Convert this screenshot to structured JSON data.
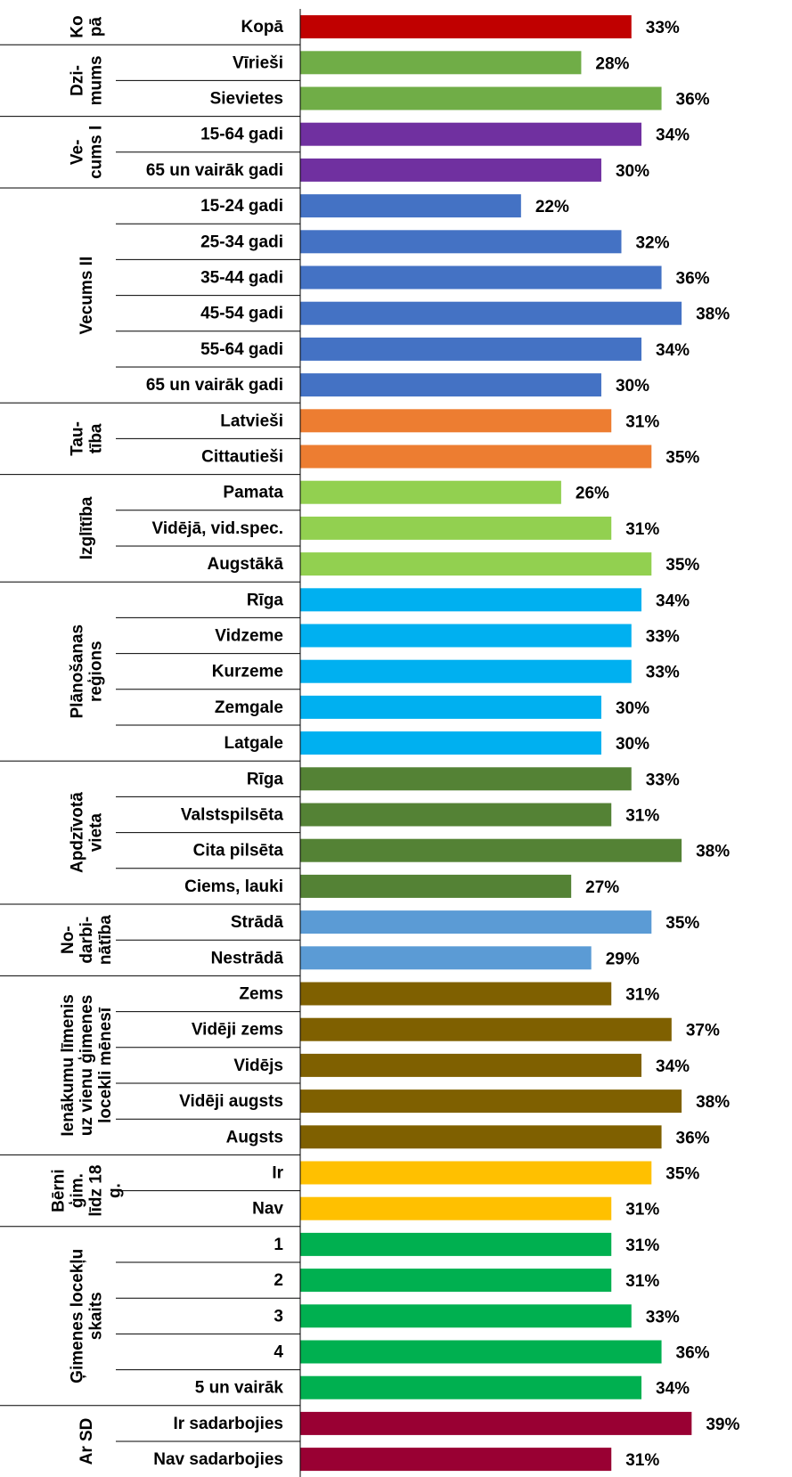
{
  "chart_data": {
    "type": "bar",
    "xlim": [
      0,
      49
    ],
    "groups": [
      {
        "name_lines": [
          "Ko",
          "pā"
        ],
        "color": "#c00000",
        "categories": [
          "Kopā"
        ],
        "values": [
          33
        ],
        "value_labels": [
          "33%"
        ]
      },
      {
        "name_lines": [
          "Dzi-",
          "mums"
        ],
        "color": "#70ad47",
        "categories": [
          "Vīrieši",
          "Sievietes"
        ],
        "values": [
          28,
          36
        ],
        "value_labels": [
          "28%",
          "36%"
        ]
      },
      {
        "name_lines": [
          "Ve-",
          "cums I"
        ],
        "color": "#7030a0",
        "categories": [
          "15-64 gadi",
          "65 un vairāk gadi"
        ],
        "values": [
          34,
          30
        ],
        "value_labels": [
          "34%",
          "30%"
        ]
      },
      {
        "name_lines": [
          "Vecums II"
        ],
        "color": "#4472c4",
        "categories": [
          "15-24 gadi",
          "25-34 gadi",
          "35-44 gadi",
          "45-54 gadi",
          "55-64 gadi",
          "65 un vairāk gadi"
        ],
        "values": [
          22,
          32,
          36,
          38,
          34,
          30
        ],
        "value_labels": [
          "22%",
          "32%",
          "36%",
          "38%",
          "34%",
          "30%"
        ]
      },
      {
        "name_lines": [
          "Tau-",
          "tība"
        ],
        "color": "#ed7d31",
        "categories": [
          "Latvieši",
          "Cittautieši"
        ],
        "values": [
          31,
          35
        ],
        "value_labels": [
          "31%",
          "35%"
        ]
      },
      {
        "name_lines": [
          "Izglītība"
        ],
        "color": "#92d050",
        "categories": [
          "Pamata",
          "Vidējā, vid.spec.",
          "Augstākā"
        ],
        "values": [
          26,
          31,
          35
        ],
        "value_labels": [
          "26%",
          "31%",
          "35%"
        ]
      },
      {
        "name_lines": [
          "Plānošanas",
          "reģions"
        ],
        "color": "#00b0f0",
        "categories": [
          "Rīga",
          "Vidzeme",
          "Kurzeme",
          "Zemgale",
          "Latgale"
        ],
        "values": [
          34,
          33,
          33,
          30,
          30
        ],
        "value_labels": [
          "34%",
          "33%",
          "33%",
          "30%",
          "30%"
        ]
      },
      {
        "name_lines": [
          "Apdzīvotā",
          "vieta"
        ],
        "color": "#548235",
        "categories": [
          "Rīga",
          "Valstspilsēta",
          "Cita pilsēta",
          "Ciems, lauki"
        ],
        "values": [
          33,
          31,
          38,
          27
        ],
        "value_labels": [
          "33%",
          "31%",
          "38%",
          "27%"
        ]
      },
      {
        "name_lines": [
          "No-",
          "darbi-",
          "nātība"
        ],
        "color": "#5b9bd5",
        "categories": [
          "Strādā",
          "Nestrādā"
        ],
        "values": [
          35,
          29
        ],
        "value_labels": [
          "35%",
          "29%"
        ]
      },
      {
        "name_lines": [
          "Ienākumu līmenis",
          "uz vienu ģimenes",
          "locekli mēnesī"
        ],
        "color": "#7f6000",
        "categories": [
          "Zems",
          "Vidēji zems",
          "Vidējs",
          "Vidēji augsts",
          "Augsts"
        ],
        "values": [
          31,
          37,
          34,
          38,
          36
        ],
        "value_labels": [
          "31%",
          "37%",
          "34%",
          "38%",
          "36%"
        ]
      },
      {
        "name_lines": [
          "Bērni",
          "ģim.",
          "līdz 18",
          "g."
        ],
        "color": "#ffc000",
        "categories": [
          "Ir",
          "Nav"
        ],
        "values": [
          35,
          31
        ],
        "value_labels": [
          "35%",
          "31%"
        ]
      },
      {
        "name_lines": [
          "Ģimenes locekļu",
          "skaits"
        ],
        "color": "#00b050",
        "categories": [
          "1",
          "2",
          "3",
          "4",
          "5 un vairāk"
        ],
        "values": [
          31,
          31,
          33,
          36,
          34
        ],
        "value_labels": [
          "31%",
          "31%",
          "33%",
          "36%",
          "34%"
        ]
      },
      {
        "name_lines": [
          "Ar SD"
        ],
        "color": "#990033",
        "categories": [
          "Ir sadarbojies",
          "Nav sadarbojies"
        ],
        "values": [
          39,
          31
        ],
        "value_labels": [
          "39%",
          "31%"
        ]
      }
    ]
  }
}
